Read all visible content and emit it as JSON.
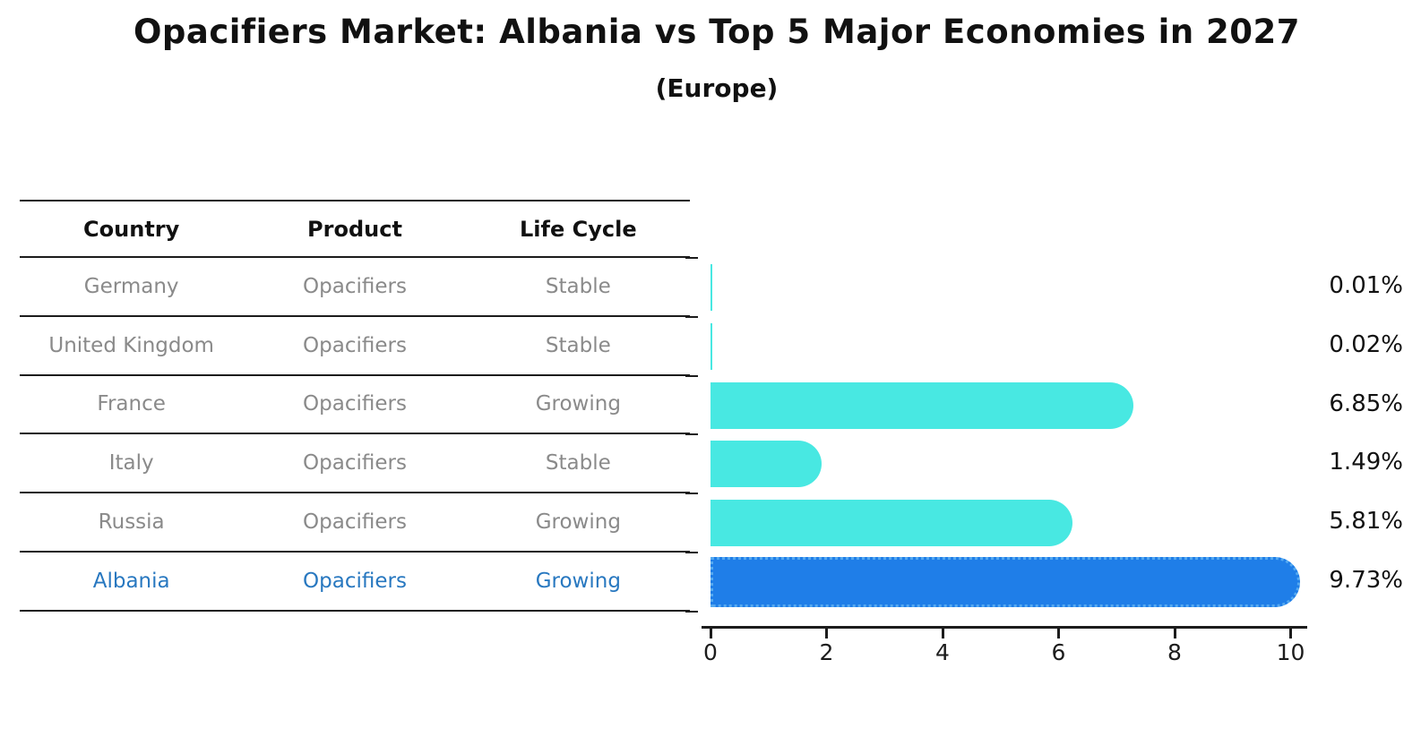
{
  "title": "Opacifiers Market: Albania vs Top 5 Major Economies in 2027",
  "subtitle": "(Europe)",
  "table": {
    "headers": [
      "Country",
      "Product",
      "Life Cycle"
    ],
    "rows": [
      {
        "country": "Germany",
        "product": "Opacifiers",
        "life_cycle": "Stable",
        "highlighted": false
      },
      {
        "country": "United Kingdom",
        "product": "Opacifiers",
        "life_cycle": "Stable",
        "highlighted": false
      },
      {
        "country": "France",
        "product": "Opacifiers",
        "life_cycle": "Growing",
        "highlighted": false
      },
      {
        "country": "Italy",
        "product": "Opacifiers",
        "life_cycle": "Stable",
        "highlighted": false
      },
      {
        "country": "Russia",
        "product": "Opacifiers",
        "life_cycle": "Growing",
        "highlighted": false
      },
      {
        "country": "Albania",
        "product": "Opacifiers",
        "life_cycle": "Growing",
        "highlighted": true
      }
    ]
  },
  "chart_data": {
    "type": "bar",
    "orientation": "horizontal",
    "title": "Opacifiers Market: Albania vs Top 5 Major Economies in 2027 (Europe)",
    "categories": [
      "Germany",
      "United Kingdom",
      "France",
      "Italy",
      "Russia",
      "Albania"
    ],
    "values": [
      0.01,
      0.02,
      6.85,
      1.49,
      5.81,
      9.73
    ],
    "value_labels": [
      "0.01%",
      "0.02%",
      "6.85%",
      "1.49%",
      "5.81%",
      "9.73%"
    ],
    "xlabel": "",
    "ylabel": "",
    "xlim": [
      0,
      10
    ],
    "xticks": [
      0,
      2,
      4,
      6,
      8,
      10
    ],
    "grid": false,
    "legend": "none",
    "highlight_index": 5
  },
  "colors": {
    "bar_default": "#48e8e2",
    "bar_highlight": "#1f7ee8",
    "bar_highlight_border": "#55a9f0",
    "table_text": "#8a8a8a",
    "highlight_text": "#2878c0",
    "axis": "#1c1c1c",
    "title_text": "#111111"
  }
}
